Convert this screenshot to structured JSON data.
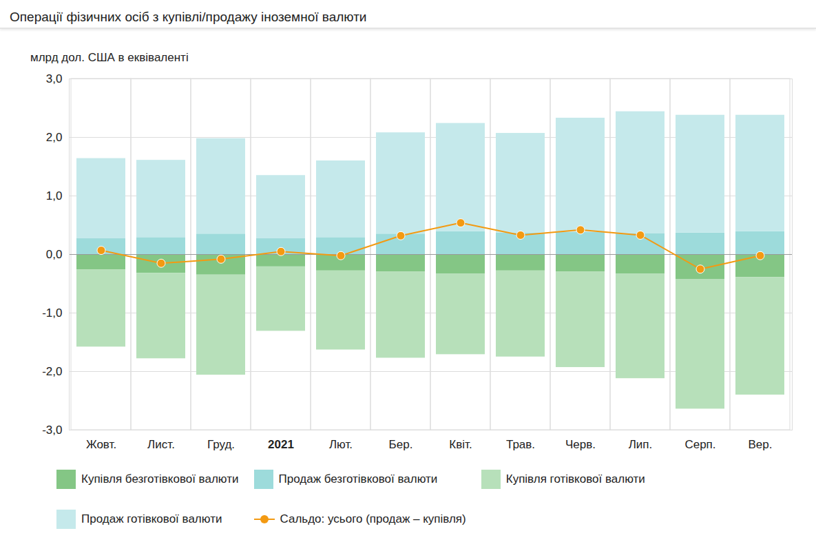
{
  "chart_data": {
    "type": "bar",
    "title": "Операції фізичних осіб з купівлі/продажу іноземної валюти",
    "y_label": "млрд дол. США в еквіваленті",
    "categories": [
      "Жовт.",
      "Лист.",
      "Груд.",
      "2021",
      "Лют.",
      "Бер.",
      "Квіт.",
      "Трав.",
      "Черв.",
      "Лип.",
      "Серп.",
      "Вер."
    ],
    "stacked": true,
    "grid": true,
    "legend": "bottom",
    "ylim": [
      -3,
      3
    ],
    "yticks": [
      {
        "value": -3,
        "label": "-3,0"
      },
      {
        "value": -2,
        "label": "-2,0"
      },
      {
        "value": -1,
        "label": "-1,0"
      },
      {
        "value": 0,
        "label": "0,0"
      },
      {
        "value": 1,
        "label": "1,0"
      },
      {
        "value": 2,
        "label": "2,0"
      },
      {
        "value": 3,
        "label": "3,0"
      }
    ],
    "series": [
      {
        "name": "Купівля безготівкової валюти",
        "color": "#84c685",
        "values": [
          -0.26,
          -0.32,
          -0.35,
          -0.21,
          -0.28,
          -0.3,
          -0.33,
          -0.28,
          -0.3,
          -0.33,
          -0.43,
          -0.39
        ]
      },
      {
        "name": "Продаж безготівкової валюти",
        "color": "#9ddbdb",
        "values": [
          0.27,
          0.29,
          0.35,
          0.27,
          0.29,
          0.35,
          0.39,
          0.37,
          0.38,
          0.36,
          0.37,
          0.39
        ]
      },
      {
        "name": "Купівля готівкової валюти",
        "color": "#b7e0ba",
        "values": [
          -1.32,
          -1.46,
          -1.71,
          -1.1,
          -1.35,
          -1.47,
          -1.38,
          -1.47,
          -1.63,
          -1.79,
          -2.21,
          -2.01
        ]
      },
      {
        "name": "Продаж готівкової валюти",
        "color": "#c5e9eb",
        "values": [
          1.37,
          1.32,
          1.63,
          1.08,
          1.31,
          1.73,
          1.85,
          1.7,
          1.95,
          2.08,
          2.01,
          1.99
        ]
      },
      {
        "name": "Сальдо: усього (продаж – купівля)",
        "color": "#f39a12",
        "type": "line",
        "marker": "circle",
        "values": [
          0.07,
          -0.15,
          -0.08,
          0.05,
          -0.02,
          0.32,
          0.54,
          0.33,
          0.42,
          0.33,
          -0.25,
          -0.02
        ]
      }
    ]
  }
}
